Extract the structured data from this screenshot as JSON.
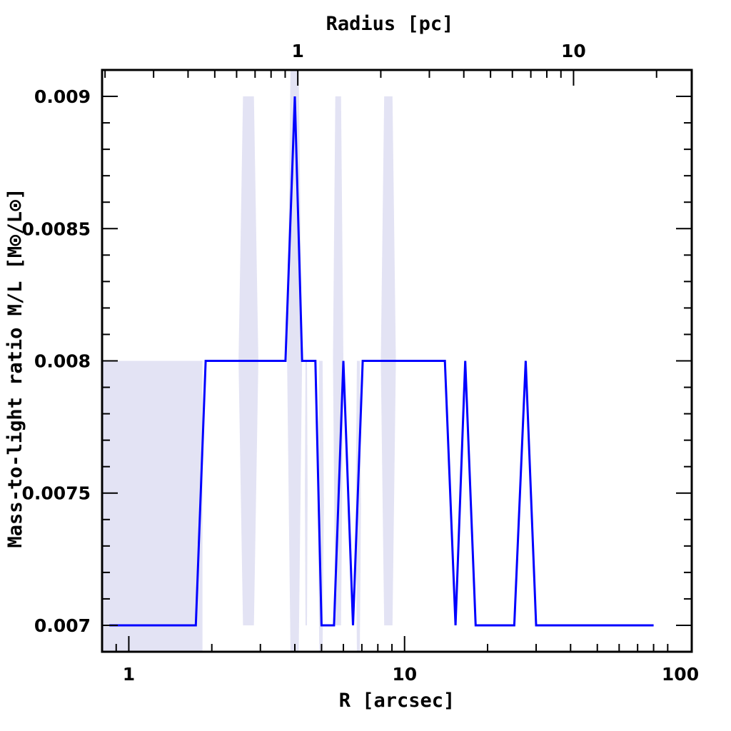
{
  "chart_data": {
    "type": "line",
    "xlabel": "R [arcsec]",
    "x2label": "Radius [pc]",
    "ylabel": "Mass-to-light ratio M/L [M⊙/L⊙]",
    "xscale": "log",
    "x2scale": "log",
    "xlim": [
      0.8,
      110
    ],
    "ylim": [
      0.0069,
      0.0091
    ],
    "x_ticks": [
      {
        "value": 1,
        "label": "1"
      },
      {
        "value": 10,
        "label": "10"
      },
      {
        "value": 100,
        "label": "100"
      }
    ],
    "x2_ticks_arcsec": [
      {
        "value": 4.1,
        "label": "1"
      },
      {
        "value": 41,
        "label": "10"
      }
    ],
    "y_ticks": [
      {
        "value": 0.007,
        "label": "0.007"
      },
      {
        "value": 0.0075,
        "label": "0.0075"
      },
      {
        "value": 0.008,
        "label": "0.008"
      },
      {
        "value": 0.0085,
        "label": "0.0085"
      },
      {
        "value": 0.009,
        "label": "0.009"
      }
    ],
    "colors": {
      "line": "#0000ff",
      "band": "#e3e3f4",
      "axes": "#000000"
    },
    "series": [
      {
        "x": [
          0.85,
          1.75,
          1.9,
          3.7,
          4.0,
          4.25,
          4.75,
          5.0,
          5.25,
          5.55,
          6.0,
          6.5,
          7.05,
          14.0,
          15.3,
          16.6,
          18.1,
          25.0,
          27.5,
          30.0,
          80.0
        ],
        "y": [
          0.007,
          0.007,
          0.008,
          0.008,
          0.009,
          0.008,
          0.008,
          0.007,
          0.007,
          0.007,
          0.008,
          0.007,
          0.008,
          0.008,
          0.007,
          0.008,
          0.007,
          0.007,
          0.008,
          0.007,
          0.007
        ]
      }
    ],
    "uncertainty_band": [
      {
        "x": [
          0.8,
          1.85
        ],
        "low": 0.0069,
        "high": 0.008
      },
      {
        "x": [
          2.5,
          2.95
        ],
        "low": 0.007,
        "high": 0.009
      },
      {
        "x": [
          3.75,
          4.25
        ],
        "low": 0.0069,
        "high": 0.0091
      },
      {
        "x": [
          4.35,
          4.45
        ],
        "low": 0.007,
        "high": 0.008
      },
      {
        "x": [
          4.85,
          5.1
        ],
        "low": 0.0069,
        "high": 0.008
      },
      {
        "x": [
          5.5,
          6.0
        ],
        "low": 0.007,
        "high": 0.009
      },
      {
        "x": [
          6.65,
          6.95
        ],
        "low": 0.0069,
        "high": 0.008
      },
      {
        "x": [
          8.2,
          9.3
        ],
        "low": 0.007,
        "high": 0.009
      }
    ]
  }
}
